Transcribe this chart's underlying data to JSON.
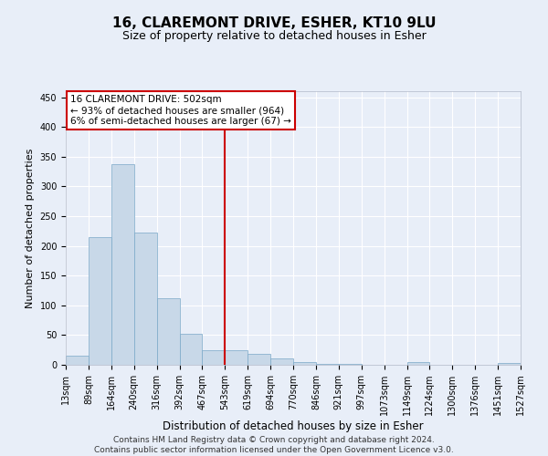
{
  "title": "16, CLAREMONT DRIVE, ESHER, KT10 9LU",
  "subtitle": "Size of property relative to detached houses in Esher",
  "xlabel": "Distribution of detached houses by size in Esher",
  "ylabel": "Number of detached properties",
  "bar_color": "#c8d8e8",
  "bar_edge_color": "#7aa8c8",
  "background_color": "#e8eef8",
  "grid_color": "#ffffff",
  "vline_x_bin_index": 6,
  "vline_color": "#cc0000",
  "annotation_line1": "16 CLAREMONT DRIVE: 502sqm",
  "annotation_line2": "← 93% of detached houses are smaller (964)",
  "annotation_line3": "6% of semi-detached houses are larger (67) →",
  "annotation_box_color": "#cc0000",
  "footer": "Contains HM Land Registry data © Crown copyright and database right 2024.\nContains public sector information licensed under the Open Government Licence v3.0.",
  "bins": [
    13,
    89,
    164,
    240,
    316,
    392,
    467,
    543,
    619,
    694,
    770,
    846,
    921,
    997,
    1073,
    1149,
    1224,
    1300,
    1376,
    1451,
    1527
  ],
  "counts": [
    15,
    215,
    338,
    222,
    112,
    52,
    25,
    25,
    19,
    10,
    5,
    2,
    1,
    0,
    0,
    4,
    0,
    0,
    0,
    3
  ],
  "ylim": [
    0,
    460
  ],
  "yticks": [
    0,
    50,
    100,
    150,
    200,
    250,
    300,
    350,
    400,
    450
  ],
  "title_fontsize": 11,
  "subtitle_fontsize": 9,
  "ylabel_fontsize": 8,
  "xlabel_fontsize": 8.5,
  "tick_fontsize": 7,
  "footer_fontsize": 6.5
}
